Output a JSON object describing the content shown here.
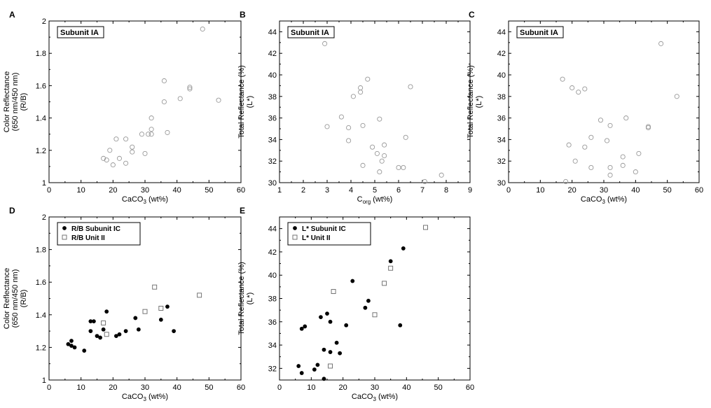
{
  "chart_data": [
    {
      "id": "A",
      "type": "scatter",
      "panel_label": "A",
      "box_label": "Subunit IA",
      "xlabel": "CaCO3 (wt%)",
      "ylabel": [
        "Color Reflectance",
        "(650 nm/450 nm)",
        "(R/B)"
      ],
      "xlim": [
        0,
        60
      ],
      "ylim": [
        1,
        2
      ],
      "xticks": [
        "0",
        "10",
        "20",
        "30",
        "40",
        "50",
        "60"
      ],
      "yticks": [
        "1",
        "1.2",
        "1.4",
        "1.6",
        "1.8",
        "2"
      ],
      "series": [
        {
          "marker": "open-circle",
          "color": "#999999",
          "points": [
            [
              17,
              1.15
            ],
            [
              18,
              1.14
            ],
            [
              19,
              1.2
            ],
            [
              20,
              1.11
            ],
            [
              21,
              1.27
            ],
            [
              22,
              1.15
            ],
            [
              24,
              1.27
            ],
            [
              24,
              1.12
            ],
            [
              26,
              1.19
            ],
            [
              26,
              1.22
            ],
            [
              29,
              1.3
            ],
            [
              30,
              1.18
            ],
            [
              31,
              1.3
            ],
            [
              32,
              1.33
            ],
            [
              32,
              1.3
            ],
            [
              32,
              1.4
            ],
            [
              36,
              1.5
            ],
            [
              36,
              1.63
            ],
            [
              37,
              1.31
            ],
            [
              41,
              1.52
            ],
            [
              44,
              1.58
            ],
            [
              44,
              1.59
            ],
            [
              48,
              1.95
            ],
            [
              53,
              1.51
            ]
          ]
        }
      ]
    },
    {
      "id": "B",
      "type": "scatter",
      "panel_label": "B",
      "box_label": "Subunit IA",
      "xlabel": "Corg (wt%)",
      "ylabel": [
        "Total Reflectance (%)",
        "(L*)"
      ],
      "xlim": [
        1,
        9
      ],
      "ylim": [
        30,
        45
      ],
      "xticks": [
        "1",
        "2",
        "3",
        "4",
        "5",
        "6",
        "7",
        "8",
        "9"
      ],
      "yticks": [
        "30",
        "32",
        "34",
        "36",
        "38",
        "40",
        "42",
        "44"
      ],
      "series": [
        {
          "marker": "open-circle",
          "color": "#999999",
          "points": [
            [
              2.9,
              42.9
            ],
            [
              3.0,
              35.2
            ],
            [
              3.6,
              36.1
            ],
            [
              3.9,
              35.1
            ],
            [
              3.9,
              33.9
            ],
            [
              4.1,
              38.0
            ],
            [
              4.4,
              38.8
            ],
            [
              4.4,
              38.4
            ],
            [
              4.5,
              35.3
            ],
            [
              4.5,
              31.6
            ],
            [
              4.7,
              39.6
            ],
            [
              4.9,
              33.3
            ],
            [
              5.1,
              32.7
            ],
            [
              5.2,
              35.9
            ],
            [
              5.2,
              31.0
            ],
            [
              5.3,
              32.0
            ],
            [
              5.4,
              33.5
            ],
            [
              5.4,
              32.5
            ],
            [
              6.0,
              31.4
            ],
            [
              6.2,
              31.4
            ],
            [
              6.3,
              34.2
            ],
            [
              6.5,
              38.9
            ],
            [
              7.1,
              30.1
            ],
            [
              7.8,
              30.7
            ]
          ]
        }
      ]
    },
    {
      "id": "C",
      "type": "scatter",
      "panel_label": "C",
      "box_label": "Subunit IA",
      "xlabel": "CaCO3 (wt%)",
      "ylabel": [
        "Total Reflectance (%)",
        "(L*)"
      ],
      "xlim": [
        0,
        60
      ],
      "ylim": [
        30,
        45
      ],
      "xticks": [
        "0",
        "10",
        "20",
        "30",
        "40",
        "50",
        "60"
      ],
      "yticks": [
        "30",
        "32",
        "34",
        "36",
        "38",
        "40",
        "42",
        "44"
      ],
      "series": [
        {
          "marker": "open-circle",
          "color": "#999999",
          "points": [
            [
              17,
              39.6
            ],
            [
              18,
              30.1
            ],
            [
              19,
              33.5
            ],
            [
              20,
              38.8
            ],
            [
              21,
              32.0
            ],
            [
              22,
              38.4
            ],
            [
              24,
              33.3
            ],
            [
              24,
              38.7
            ],
            [
              26,
              31.4
            ],
            [
              26,
              34.2
            ],
            [
              29,
              35.8
            ],
            [
              31,
              33.9
            ],
            [
              32,
              35.3
            ],
            [
              32,
              31.4
            ],
            [
              32,
              30.7
            ],
            [
              36,
              32.4
            ],
            [
              36,
              31.6
            ],
            [
              37,
              36.0
            ],
            [
              40,
              31.0
            ],
            [
              41,
              32.7
            ],
            [
              44,
              35.1
            ],
            [
              44,
              35.2
            ],
            [
              48,
              42.9
            ],
            [
              53,
              38.0
            ]
          ]
        }
      ]
    },
    {
      "id": "D",
      "type": "scatter",
      "panel_label": "D",
      "xlabel": "CaCO3 (wt%)",
      "ylabel": [
        "Color Reflectance",
        "(650 nm/450 nm)",
        "(R/B)"
      ],
      "xlim": [
        0,
        60
      ],
      "ylim": [
        1,
        2
      ],
      "xticks": [
        "0",
        "10",
        "20",
        "30",
        "40",
        "50",
        "60"
      ],
      "yticks": [
        "1",
        "1.2",
        "1.4",
        "1.6",
        "1.8",
        "2"
      ],
      "legend": [
        "R/B Subunit IC",
        "R/B Unit II"
      ],
      "legend_position": "top-left",
      "series": [
        {
          "name": "R/B Subunit IC",
          "marker": "filled-circle",
          "color": "#000000",
          "points": [
            [
              6,
              1.22
            ],
            [
              7,
              1.24
            ],
            [
              7,
              1.21
            ],
            [
              8,
              1.2
            ],
            [
              11,
              1.18
            ],
            [
              13,
              1.36
            ],
            [
              13,
              1.3
            ],
            [
              14,
              1.36
            ],
            [
              15,
              1.27
            ],
            [
              16,
              1.26
            ],
            [
              17,
              1.31
            ],
            [
              18,
              1.42
            ],
            [
              21,
              1.27
            ],
            [
              22,
              1.28
            ],
            [
              24,
              1.3
            ],
            [
              27,
              1.38
            ],
            [
              28,
              1.31
            ],
            [
              35,
              1.37
            ],
            [
              37,
              1.45
            ],
            [
              39,
              1.3
            ]
          ]
        },
        {
          "name": "R/B Unit II",
          "marker": "open-square",
          "color": "#666666",
          "points": [
            [
              17,
              1.35
            ],
            [
              18,
              1.28
            ],
            [
              30,
              1.42
            ],
            [
              33,
              1.57
            ],
            [
              35,
              1.44
            ],
            [
              47,
              1.52
            ]
          ]
        }
      ]
    },
    {
      "id": "E",
      "type": "scatter",
      "panel_label": "E",
      "xlabel": "CaCO3 (wt%)",
      "ylabel": [
        "Total Reflectance (%)",
        "(L*)"
      ],
      "xlim": [
        0,
        60
      ],
      "ylim": [
        31,
        45
      ],
      "xticks": [
        "0",
        "10",
        "20",
        "30",
        "40",
        "50",
        "60"
      ],
      "yticks": [
        "32",
        "34",
        "36",
        "38",
        "40",
        "42",
        "44"
      ],
      "legend": [
        "L* Subunit IC",
        "L* Unit II"
      ],
      "legend_position": "top-left",
      "series": [
        {
          "name": "L* Subunit IC",
          "marker": "filled-circle",
          "color": "#000000",
          "points": [
            [
              6,
              32.2
            ],
            [
              7,
              31.6
            ],
            [
              7,
              35.4
            ],
            [
              8,
              35.6
            ],
            [
              11,
              31.9
            ],
            [
              12,
              32.3
            ],
            [
              13,
              36.4
            ],
            [
              14,
              31.1
            ],
            [
              14,
              33.6
            ],
            [
              15,
              36.7
            ],
            [
              16,
              36.0
            ],
            [
              16,
              33.4
            ],
            [
              18,
              34.2
            ],
            [
              19,
              33.3
            ],
            [
              21,
              35.7
            ],
            [
              23,
              39.5
            ],
            [
              27,
              37.2
            ],
            [
              28,
              37.8
            ],
            [
              35,
              41.2
            ],
            [
              38,
              35.7
            ],
            [
              39,
              42.3
            ]
          ]
        },
        {
          "name": "L* Unit II",
          "marker": "open-square",
          "color": "#666666",
          "points": [
            [
              16,
              32.2
            ],
            [
              17,
              38.6
            ],
            [
              30,
              36.6
            ],
            [
              33,
              39.3
            ],
            [
              35,
              40.6
            ],
            [
              46,
              44.1
            ]
          ]
        }
      ]
    }
  ]
}
